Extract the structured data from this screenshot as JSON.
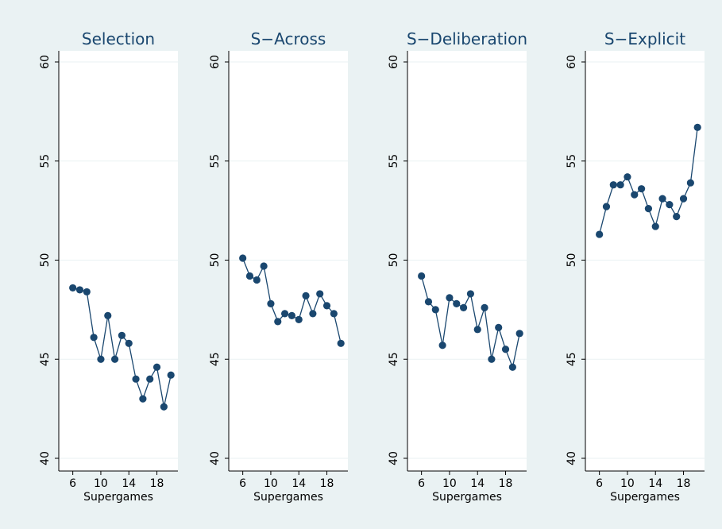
{
  "colors": {
    "background": "#eaf2f3",
    "plot_area": "#ffffff",
    "series": "#1a476f",
    "grid": "#eaf2f3",
    "text": "#000000"
  },
  "chart_data": [
    {
      "type": "line",
      "title": "Selection",
      "xlabel": "Supergames",
      "ylabel": "",
      "x": [
        6,
        7,
        8,
        9,
        10,
        11,
        12,
        13,
        14,
        15,
        16,
        17,
        18,
        19,
        20
      ],
      "series": [
        {
          "values": [
            48.6,
            48.5,
            48.4,
            46.1,
            45.0,
            47.2,
            45.0,
            46.2,
            45.8,
            44.0,
            43.0,
            44.0,
            44.6,
            42.6,
            44.2
          ]
        }
      ],
      "xticks": [
        6,
        10,
        14,
        18
      ],
      "yticks": [
        40,
        45,
        50,
        55,
        60
      ],
      "xlim": [
        4,
        21
      ],
      "ylim": [
        40,
        60
      ],
      "grid": true,
      "markers": true
    },
    {
      "type": "line",
      "title": "S−Across",
      "xlabel": "Supergames",
      "ylabel": "",
      "x": [
        6,
        7,
        8,
        9,
        10,
        11,
        12,
        13,
        14,
        15,
        16,
        17,
        18,
        19,
        20
      ],
      "series": [
        {
          "values": [
            50.1,
            49.2,
            49.0,
            49.7,
            47.8,
            46.9,
            47.3,
            47.2,
            47.0,
            48.2,
            47.3,
            48.3,
            47.7,
            47.3,
            45.8
          ]
        }
      ],
      "xticks": [
        6,
        10,
        14,
        18
      ],
      "yticks": [
        40,
        45,
        50,
        55,
        60
      ],
      "xlim": [
        4,
        21
      ],
      "ylim": [
        40,
        60
      ],
      "grid": true,
      "markers": true
    },
    {
      "type": "line",
      "title": "S−Deliberation",
      "xlabel": "Supergames",
      "ylabel": "",
      "x": [
        6,
        7,
        8,
        9,
        10,
        11,
        12,
        13,
        14,
        15,
        16,
        17,
        18,
        19,
        20
      ],
      "series": [
        {
          "values": [
            49.2,
            47.9,
            47.5,
            45.7,
            48.1,
            47.8,
            47.6,
            48.3,
            46.5,
            47.6,
            45.0,
            46.6,
            45.5,
            44.6,
            46.3
          ]
        }
      ],
      "xticks": [
        6,
        10,
        14,
        18
      ],
      "yticks": [
        40,
        45,
        50,
        55,
        60
      ],
      "xlim": [
        4,
        21
      ],
      "ylim": [
        40,
        60
      ],
      "grid": true,
      "markers": true
    },
    {
      "type": "line",
      "title": "S−Explicit",
      "xlabel": "Supergames",
      "ylabel": "",
      "x": [
        6,
        7,
        8,
        9,
        10,
        11,
        12,
        13,
        14,
        15,
        16,
        17,
        18,
        19,
        20
      ],
      "series": [
        {
          "values": [
            51.3,
            52.7,
            53.8,
            53.8,
            54.2,
            53.3,
            53.6,
            52.6,
            51.7,
            53.1,
            52.8,
            52.2,
            53.1,
            53.9,
            56.7
          ]
        }
      ],
      "xticks": [
        6,
        10,
        14,
        18
      ],
      "yticks": [
        40,
        45,
        50,
        55,
        60
      ],
      "xlim": [
        4,
        21
      ],
      "ylim": [
        40,
        60
      ],
      "grid": true,
      "markers": true
    }
  ]
}
